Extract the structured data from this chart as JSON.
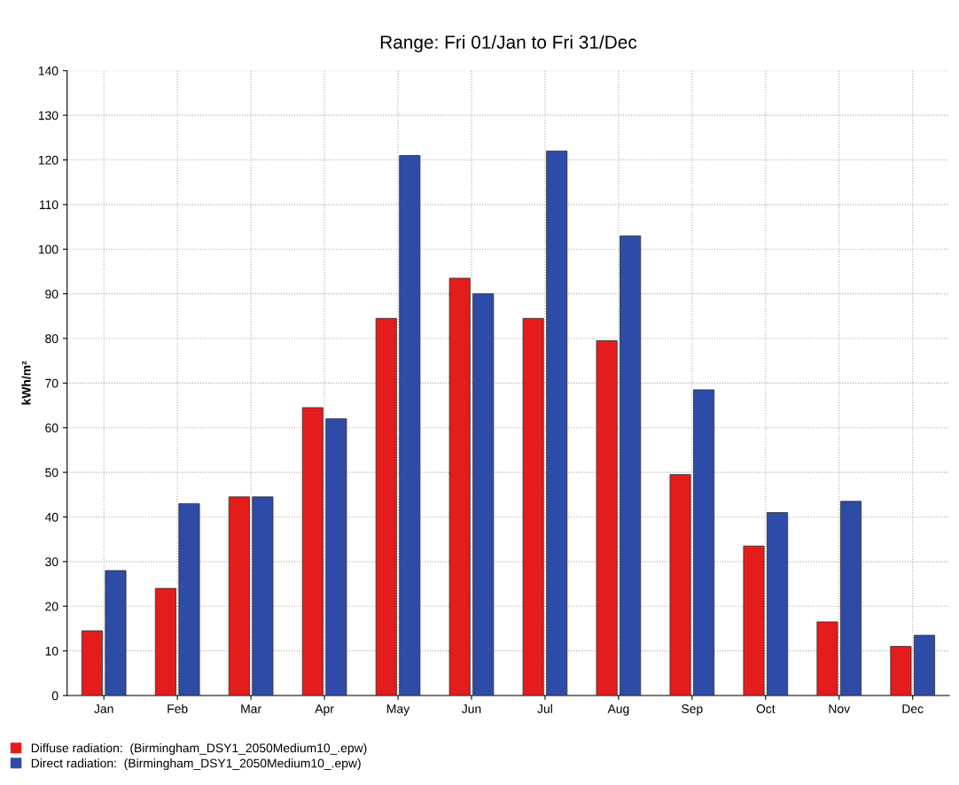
{
  "chart_data": {
    "type": "bar",
    "title": "Range: Fri 01/Jan to Fri 31/Dec",
    "ylabel": "kWh/m²",
    "categories": [
      "Jan",
      "Feb",
      "Mar",
      "Apr",
      "May",
      "Jun",
      "Jul",
      "Aug",
      "Sep",
      "Oct",
      "Nov",
      "Dec"
    ],
    "series": [
      {
        "name": "Diffuse radiation:  (Birmingham_DSY1_2050Medium10_.epw)",
        "color": "#e41c1c",
        "values": [
          14.5,
          24,
          44.5,
          64.5,
          84.5,
          93.5,
          84.5,
          79.5,
          49.5,
          33.5,
          16.5,
          11
        ]
      },
      {
        "name": "Direct radiation:  (Birmingham_DSY1_2050Medium10_.epw)",
        "color": "#2e4ba8",
        "values": [
          28,
          43,
          44.5,
          62,
          121,
          90,
          122,
          103,
          68.5,
          41,
          43.5,
          13.5
        ]
      }
    ],
    "ylim": [
      0,
      140
    ],
    "yticks": [
      0,
      10,
      20,
      30,
      40,
      50,
      60,
      70,
      80,
      90,
      100,
      110,
      120,
      130,
      140
    ],
    "grid": true,
    "legend": "bottom left"
  }
}
